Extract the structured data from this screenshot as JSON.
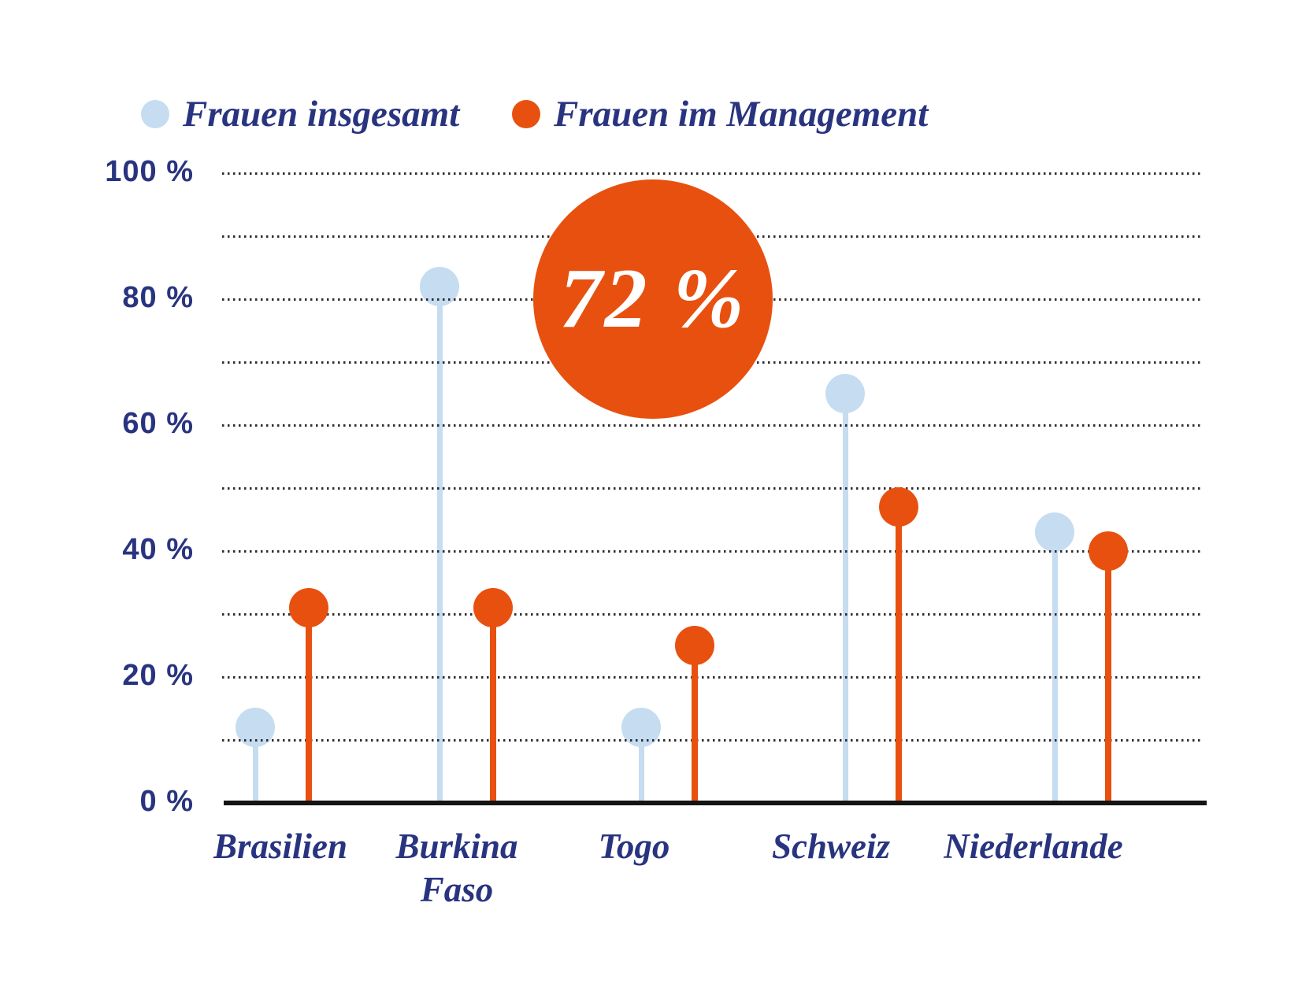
{
  "legend": {
    "items": [
      {
        "label": "Frauen insgesamt",
        "color": "#c5dcf1"
      },
      {
        "label": "Frauen im Management",
        "color": "#e8500f"
      }
    ]
  },
  "chart_data": {
    "type": "lollipop",
    "title": "",
    "unit": "%",
    "categories": [
      "Brasilien",
      "Burkina\nFaso",
      "Togo",
      "Schweiz",
      "Niederlande"
    ],
    "series": [
      {
        "name": "Frauen insgesamt",
        "color": "#c5dcf1",
        "values": [
          12,
          82,
          12,
          65,
          43
        ]
      },
      {
        "name": "Frauen im Management",
        "color": "#e8500f",
        "values": [
          31,
          31,
          25,
          47,
          40
        ]
      }
    ],
    "annotation": {
      "text": "72 %",
      "circle_color": "#e8500f",
      "text_color": "#ffffff"
    },
    "y_axis": {
      "tick_labels": [
        "100 %",
        "80 %",
        "60 %",
        "40 %",
        "20 %",
        "0 %"
      ],
      "tick_values": [
        100,
        80,
        60,
        40,
        20,
        0
      ],
      "range": [
        0,
        100
      ],
      "grid_step": 10,
      "grid_style": "dotted"
    },
    "legend_position": "top-left",
    "colors": {
      "text_navy": "#293480",
      "grid": "#2e2e2e",
      "axis": "#141414",
      "background": "#ffffff"
    }
  }
}
